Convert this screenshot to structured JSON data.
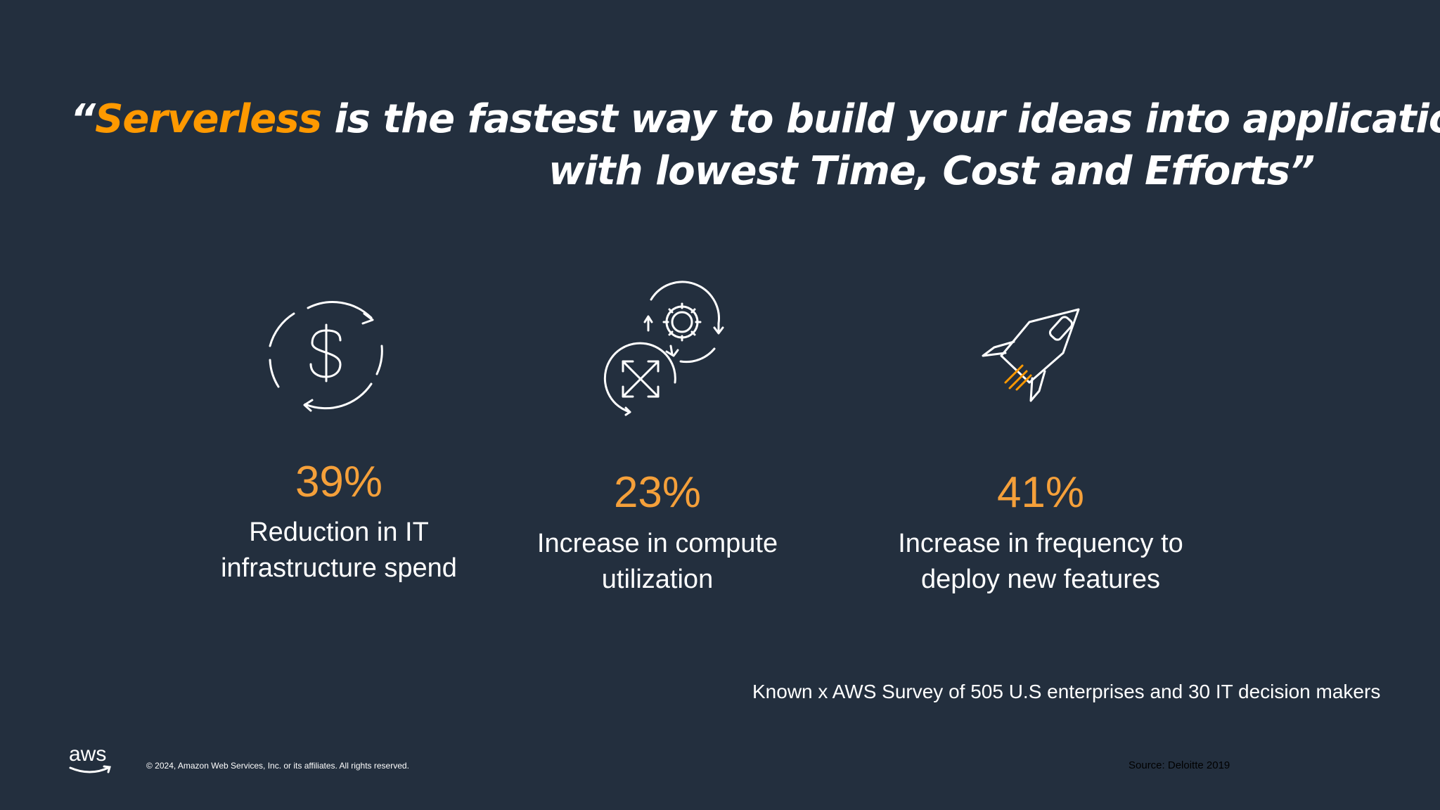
{
  "headline": {
    "open_quote": "“",
    "highlight": "Serverless",
    "line1_rest": " is the fastest way to build your ideas into applications",
    "line2": "with lowest Time, Cost and Efforts”",
    "accent_color": "#ff9900"
  },
  "stats": [
    {
      "icon": "dollar-cycle-icon",
      "value": "39%",
      "line1": "Reduction in IT",
      "line2": "infrastructure spend"
    },
    {
      "icon": "compute-scale-gear-icon",
      "value": "23%",
      "line1": "Increase in compute",
      "line2": "utilization"
    },
    {
      "icon": "rocket-icon",
      "value": "41%",
      "line1": "Increase in frequency to",
      "line2": "deploy new features"
    }
  ],
  "survey_note": "Known x AWS Survey of 505 U.S enterprises and 30 IT decision makers",
  "footer": {
    "logo_text": "aws",
    "copyright": "© 2024, Amazon Web Services, Inc. or its affiliates. All rights reserved.",
    "source": "Source: Deloitte 2019"
  },
  "colors": {
    "background": "#232f3e",
    "stat_value": "#f5a03a",
    "text": "#ffffff"
  }
}
